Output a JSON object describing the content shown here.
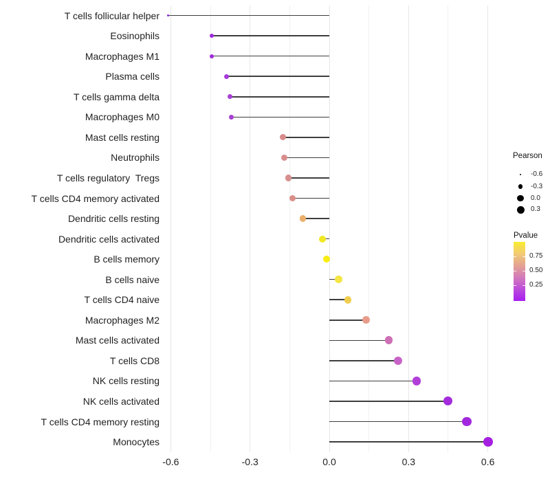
{
  "chart_data": {
    "type": "lollipop",
    "title": "",
    "xlabel": "",
    "ylabel": "",
    "x_ticks": [
      -0.6,
      -0.3,
      0.0,
      0.3,
      0.6
    ],
    "x_tick_labels": [
      "-0.6",
      "-0.3",
      "0.0",
      "0.3",
      "0.6"
    ],
    "x_minor_gridlines": [
      -0.45,
      -0.15,
      0.15,
      0.45
    ],
    "xlim": [
      -0.68,
      0.65
    ],
    "grid": "vertical-only-light-gray",
    "baseline_x": 0,
    "points": [
      {
        "label": "T cells follicular helper",
        "pearson": -0.61,
        "pvalue_approx": 0.01,
        "color": "#8e2bd8"
      },
      {
        "label": "Eosinophils",
        "pearson": -0.445,
        "pvalue_approx": 0.03,
        "color": "#9d2bdb"
      },
      {
        "label": "Macrophages M1",
        "pearson": -0.445,
        "pvalue_approx": 0.03,
        "color": "#9d2bdb"
      },
      {
        "label": "Plasma cells",
        "pearson": -0.39,
        "pvalue_approx": 0.06,
        "color": "#a53bd9"
      },
      {
        "label": "T cells gamma delta",
        "pearson": -0.375,
        "pvalue_approx": 0.07,
        "color": "#a73ed7"
      },
      {
        "label": "Macrophages M0",
        "pearson": -0.37,
        "pvalue_approx": 0.08,
        "color": "#a840d5"
      },
      {
        "label": "Mast cells resting",
        "pearson": -0.175,
        "pvalue_approx": 0.5,
        "color": "#d98b8b"
      },
      {
        "label": "Neutrophils",
        "pearson": -0.17,
        "pvalue_approx": 0.51,
        "color": "#d88e8e"
      },
      {
        "label": "T cells regulatory  Tregs",
        "pearson": -0.155,
        "pvalue_approx": 0.52,
        "color": "#d79090"
      },
      {
        "label": "T cells CD4 memory activated",
        "pearson": -0.14,
        "pvalue_approx": 0.5,
        "color": "#d98e87"
      },
      {
        "label": "Dendritic cells resting",
        "pearson": -0.1,
        "pvalue_approx": 0.63,
        "color": "#ebb069"
      },
      {
        "label": "Dendritic cells activated",
        "pearson": -0.025,
        "pvalue_approx": 0.9,
        "color": "#f2e822"
      },
      {
        "label": "B cells memory",
        "pearson": -0.01,
        "pvalue_approx": 0.95,
        "color": "#f7ed13"
      },
      {
        "label": "B cells naive",
        "pearson": 0.035,
        "pvalue_approx": 0.88,
        "color": "#f5e643"
      },
      {
        "label": "T cells CD4 naive",
        "pearson": 0.07,
        "pvalue_approx": 0.78,
        "color": "#efcd4e"
      },
      {
        "label": "Macrophages M2",
        "pearson": 0.14,
        "pvalue_approx": 0.55,
        "color": "#e79c8a"
      },
      {
        "label": "Mast cells activated",
        "pearson": 0.225,
        "pvalue_approx": 0.33,
        "color": "#cd70b5"
      },
      {
        "label": "T cells CD8",
        "pearson": 0.26,
        "pvalue_approx": 0.28,
        "color": "#c763c8"
      },
      {
        "label": "NK cells resting",
        "pearson": 0.33,
        "pvalue_approx": 0.15,
        "color": "#b23ed9"
      },
      {
        "label": "NK cells activated",
        "pearson": 0.45,
        "pvalue_approx": 0.05,
        "color": "#a32bdb"
      },
      {
        "label": "T cells CD4 memory resting",
        "pearson": 0.52,
        "pvalue_approx": 0.03,
        "color": "#a228dd"
      },
      {
        "label": "Monocytes",
        "pearson": 0.6,
        "pvalue_approx": 0.02,
        "color": "#a51fe0"
      }
    ],
    "legend_position": "right"
  },
  "legend": {
    "size": {
      "title": "Pearson",
      "items": [
        {
          "label": "-0.6",
          "value": -0.6
        },
        {
          "label": "-0.3",
          "value": -0.3
        },
        {
          "label": "0.0",
          "value": 0.0
        },
        {
          "label": "0.3",
          "value": 0.3
        }
      ]
    },
    "color": {
      "title": "Pvalue",
      "tick_labels": [
        "0.75",
        "0.50",
        "0.25"
      ],
      "gradient_stops_top_to_bottom": [
        "#faed2e",
        "#f2cb74",
        "#e4a292",
        "#d37bbc",
        "#bc4cdb",
        "#a71ef0"
      ]
    }
  },
  "colors": {
    "stem": "#3d3d3d",
    "major_grid": "#e7e7e7",
    "minor_grid": "#f1f1f1",
    "axis_text": "#1f1f1f",
    "legend_dot": "#000000"
  }
}
